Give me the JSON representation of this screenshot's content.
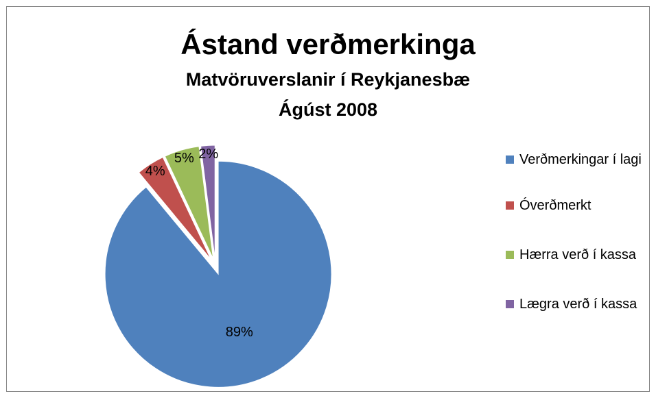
{
  "chart_data": {
    "type": "pie",
    "title": "Ástand verðmerkinga",
    "subtitle": [
      "Matvöruverslanir í Reykjanesbæ",
      "Ágúst 2008"
    ],
    "categories": [
      "Verðmerkingar í lagi",
      "Óverðmerkt",
      "Hærra verð í kassa",
      "Lægra verð í kassa"
    ],
    "values": [
      89,
      4,
      5,
      2
    ],
    "value_labels": [
      "89%",
      "4%",
      "5%",
      "2%"
    ],
    "colors": [
      "#4f81bd",
      "#c0504d",
      "#9bbb59",
      "#8064a2"
    ],
    "legend": "right"
  }
}
